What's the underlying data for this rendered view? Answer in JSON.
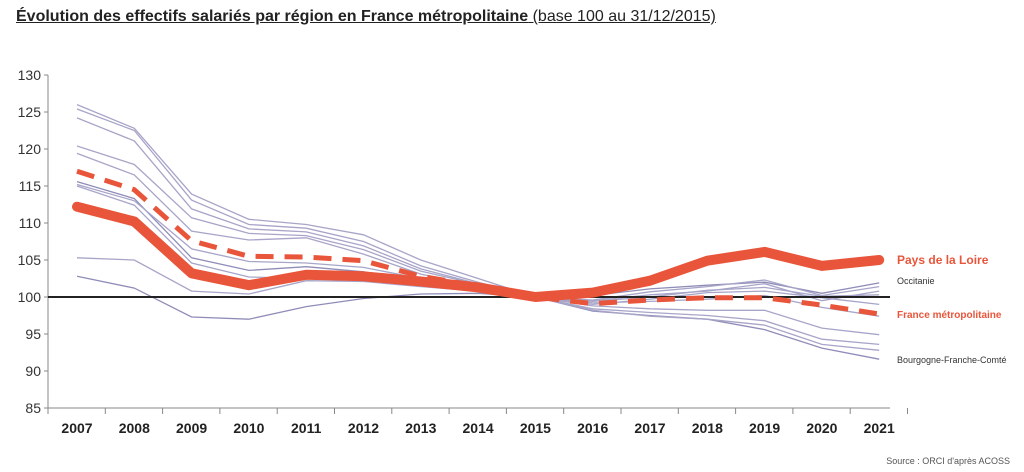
{
  "title": {
    "main": "Évolution des effectifs salariés par région en France métropolitaine",
    "sub": " (base 100 au 31/12/2015)"
  },
  "source": "Source : ORCI d'après ACOSS",
  "colors": {
    "highlight": "#e9553a",
    "grey": "#a7a5c8",
    "baseline": "#222222"
  },
  "chart_data": {
    "type": "line",
    "x": [
      "2007",
      "2008",
      "2009",
      "2010",
      "2011",
      "2012",
      "2013",
      "2014",
      "2015",
      "2016",
      "2017",
      "2018",
      "2019",
      "2020",
      "2021"
    ],
    "ylim": [
      85,
      130
    ],
    "yticks": [
      85,
      90,
      95,
      100,
      105,
      110,
      115,
      120,
      125,
      130
    ],
    "baseline": 100,
    "grid": false,
    "series": [
      {
        "name": "Pays de la Loire",
        "style": "highlight-solid",
        "label": "Pays de la Loire",
        "values": [
          112.2,
          110.2,
          103.2,
          101.6,
          103.0,
          102.8,
          102.1,
          101.3,
          100.0,
          100.6,
          102.2,
          104.9,
          106.1,
          104.2,
          105.0
        ]
      },
      {
        "name": "France métropolitaine",
        "style": "highlight-dashed",
        "label": "France métropolitaine",
        "values": [
          117.0,
          114.5,
          107.6,
          105.5,
          105.4,
          104.9,
          102.8,
          101.5,
          100.0,
          99.1,
          99.6,
          99.9,
          99.9,
          98.9,
          97.7
        ]
      },
      {
        "name": "Occitanie",
        "style": "labelled-grey",
        "label": "Occitanie",
        "values": [
          115.6,
          113.3,
          105.3,
          103.6,
          104.1,
          103.4,
          102.0,
          101.1,
          100.0,
          100.2,
          101.1,
          101.6,
          102.0,
          100.5,
          101.9
        ]
      },
      {
        "name": "Bourgogne-Franche-Comté",
        "style": "labelled-grey",
        "label": "Bourgogne-Franche-Comté",
        "values": [
          102.8,
          101.2,
          97.3,
          97.0,
          98.7,
          99.8,
          100.4,
          100.5,
          100.0,
          98.1,
          97.5,
          97.0,
          95.6,
          93.1,
          91.6
        ]
      },
      {
        "name": "",
        "style": "grey",
        "values": [
          126.0,
          122.8,
          113.9,
          110.5,
          109.8,
          108.4,
          105.0,
          102.5,
          100.0,
          99.0,
          99.7,
          100.6,
          100.8,
          99.9,
          99.0
        ]
      },
      {
        "name": "",
        "style": "grey",
        "values": [
          125.4,
          122.5,
          113.1,
          109.8,
          109.3,
          107.5,
          104.2,
          102.0,
          100.0,
          98.8,
          98.4,
          98.2,
          98.2,
          95.8,
          94.9
        ]
      },
      {
        "name": "",
        "style": "grey",
        "values": [
          124.2,
          121.1,
          111.9,
          109.2,
          108.8,
          106.9,
          103.8,
          101.8,
          100.0,
          98.4,
          97.9,
          97.5,
          96.8,
          94.3,
          93.6
        ]
      },
      {
        "name": "",
        "style": "grey",
        "values": [
          120.4,
          117.9,
          110.7,
          108.6,
          108.3,
          106.4,
          103.5,
          101.7,
          100.0,
          98.2,
          97.4,
          97.0,
          96.2,
          93.6,
          92.8
        ]
      },
      {
        "name": "",
        "style": "grey",
        "values": [
          119.4,
          116.5,
          108.9,
          107.7,
          108.0,
          105.8,
          103.1,
          101.5,
          100.0,
          99.4,
          100.0,
          100.9,
          101.3,
          100.1,
          100.3
        ]
      },
      {
        "name": "",
        "style": "grey",
        "values": [
          115.0,
          112.4,
          104.6,
          102.7,
          102.5,
          102.6,
          101.8,
          101.0,
          100.0,
          99.2,
          99.4,
          99.7,
          100.2,
          98.6,
          97.4
        ]
      },
      {
        "name": "",
        "style": "grey",
        "values": [
          105.3,
          105.0,
          100.8,
          100.4,
          102.2,
          102.1,
          101.4,
          100.8,
          100.0,
          99.5,
          100.3,
          100.8,
          101.8,
          99.5,
          100.8
        ]
      },
      {
        "name": "",
        "style": "grey",
        "values": [
          115.2,
          113.0,
          106.5,
          104.8,
          104.6,
          104.0,
          102.5,
          101.3,
          100.0,
          99.6,
          100.7,
          101.4,
          102.3,
          100.2,
          101.4
        ]
      }
    ]
  }
}
